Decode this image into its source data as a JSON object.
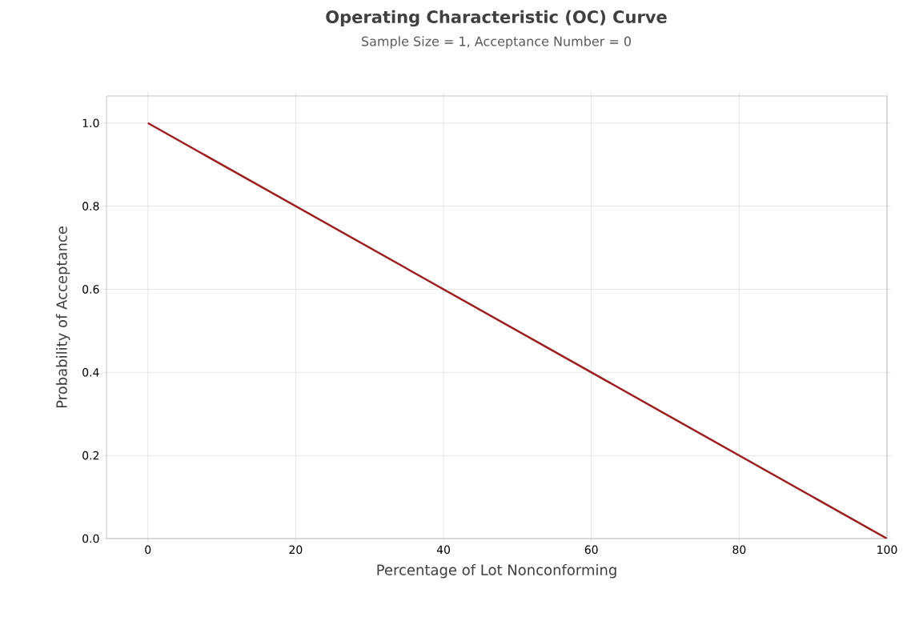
{
  "chart_data": {
    "type": "line",
    "title": "Operating Characteristic (OC) Curve",
    "subtitle": "Sample Size = 1, Acceptance Number = 0",
    "xlabel": "Percentage of Lot Nonconforming",
    "ylabel": "Probability of Acceptance",
    "x": [
      0,
      100
    ],
    "series": [
      {
        "color": "#9b1f1f",
        "values": [
          1.0,
          0.0
        ]
      }
    ],
    "xlim": [
      -5.6,
      100
    ],
    "ylim": [
      0,
      1.065
    ],
    "xticks": [
      0,
      20,
      40,
      60,
      80,
      100
    ],
    "yticks": [
      {
        "value": 0,
        "label": "0.0"
      },
      {
        "value": 0.2,
        "label": "0.2"
      },
      {
        "value": 0.4,
        "label": "0.4"
      },
      {
        "value": 0.6,
        "label": "0.6"
      },
      {
        "value": 0.8,
        "label": "0.8"
      },
      {
        "value": 1.0,
        "label": "1.0"
      }
    ],
    "grid": true,
    "marker": "none",
    "line_style": "solid"
  }
}
